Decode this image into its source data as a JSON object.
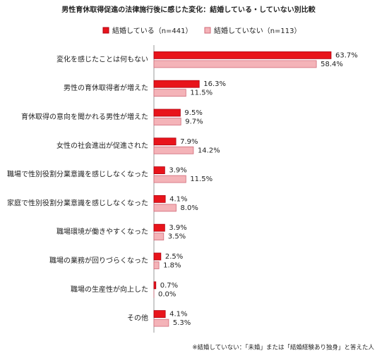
{
  "chart_data": {
    "type": "hbar",
    "title": "男性育休取得促進の法律施行後に感じた変化：結婚している・していない別比較",
    "categories": [
      "変化を感じたことは何もない",
      "男性の育休取得者が増えた",
      "育休取得の意向を聞かれる男性が増えた",
      "女性の社会進出が促進された",
      "職場で性別役割分業意識を感じしなくなった",
      "家庭で性別役割分業意識を感じしなくなった",
      "職場環境が働きやすくなった",
      "職場の業務が回りづらくなった",
      "職場の生産性が向上した",
      "その他"
    ],
    "series": [
      {
        "name": "結婚している（n=441）",
        "color": "#e8141b",
        "values": [
          63.7,
          16.3,
          9.5,
          7.9,
          3.9,
          4.1,
          3.9,
          2.5,
          0.7,
          4.1
        ],
        "value_labels": [
          "63.7%",
          "16.3%",
          "9.5%",
          "7.9%",
          "3.9%",
          "4.1%",
          "3.9%",
          "2.5%",
          "0.7%",
          "4.1%"
        ]
      },
      {
        "name": "結婚していない（n=113）",
        "color": "#f4b3b8",
        "values": [
          58.4,
          11.5,
          9.7,
          14.2,
          11.5,
          8.0,
          3.5,
          1.8,
          0.0,
          5.3
        ],
        "value_labels": [
          "58.4%",
          "11.5%",
          "9.7%",
          "14.2%",
          "11.5%",
          "8.0%",
          "3.5%",
          "1.8%",
          "0.0%",
          "5.3%"
        ]
      }
    ],
    "note": "※結婚していない：「未婚」または「結婚経験あり独身」と答えた人"
  }
}
